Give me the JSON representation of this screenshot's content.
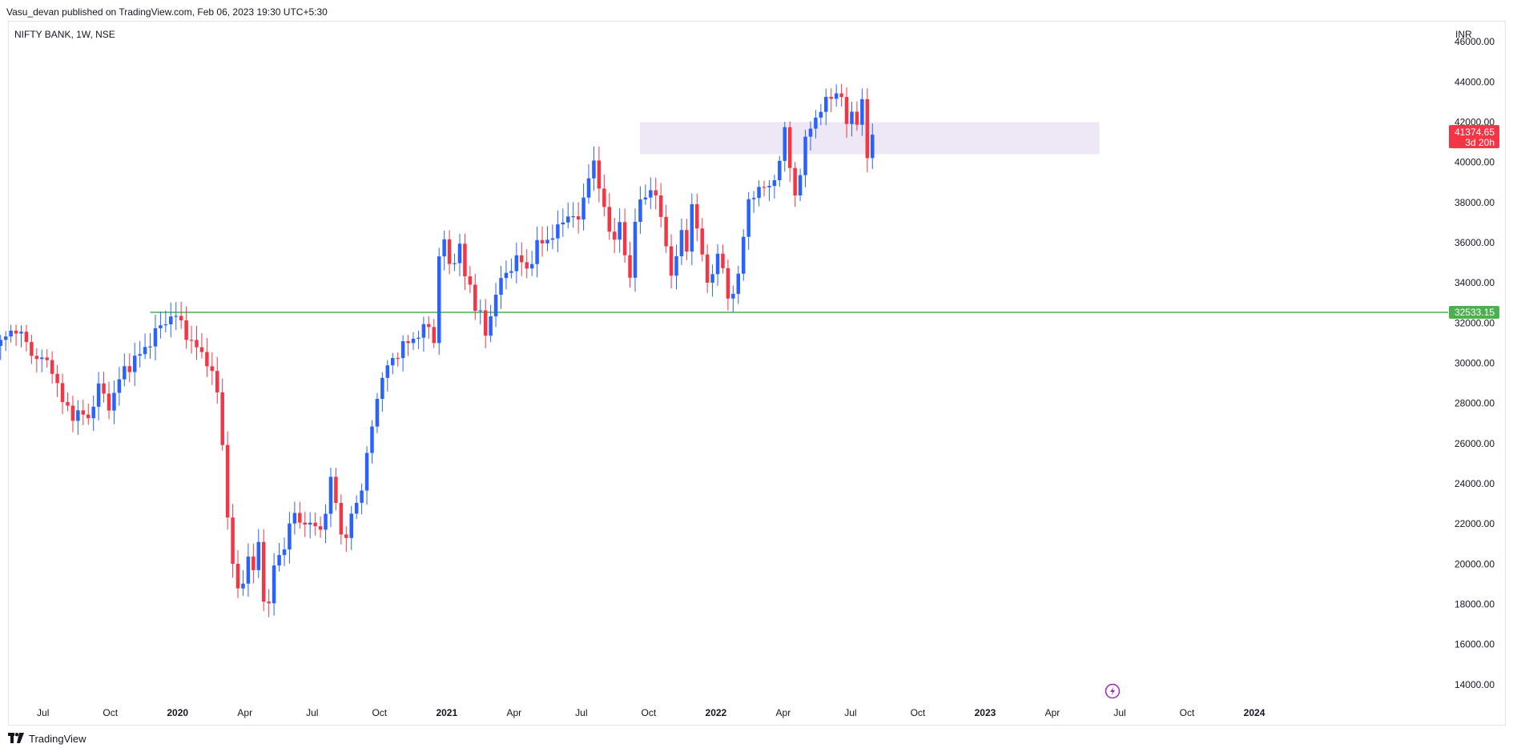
{
  "publish_line": "Vasu_devan published on TradingView.com, Feb 06, 2023 19:30 UTC+5:30",
  "symbol_line": "NIFTY BANK, 1W, NSE",
  "currency": "INR",
  "footer_brand": "TradingView",
  "colors": {
    "up": "#2962ff",
    "down": "#f23645",
    "support_line": "#4caf50",
    "zone_fill": "#ede7f6",
    "price_badge": "#f23645",
    "support_badge": "#4caf50"
  },
  "icons": {
    "footer": "tradingview-logo-icon",
    "event": "lightning-event-icon"
  },
  "chart_data": {
    "type": "candlestick",
    "title": "NIFTY BANK, 1W, NSE",
    "ylabel": "INR",
    "ylim": [
      13000,
      47000
    ],
    "y_ticks": [
      "14000.00",
      "16000.00",
      "18000.00",
      "20000.00",
      "22000.00",
      "24000.00",
      "26000.00",
      "28000.00",
      "30000.00",
      "32000.00",
      "34000.00",
      "36000.00",
      "38000.00",
      "40000.00",
      "42000.00",
      "44000.00",
      "46000.00"
    ],
    "x_labels": [
      {
        "label": "Jul",
        "t": 2019.5,
        "bold": false
      },
      {
        "label": "Oct",
        "t": 2019.75,
        "bold": false
      },
      {
        "label": "2020",
        "t": 2020.0,
        "bold": true
      },
      {
        "label": "Apr",
        "t": 2020.25,
        "bold": false
      },
      {
        "label": "Jul",
        "t": 2020.5,
        "bold": false
      },
      {
        "label": "Oct",
        "t": 2020.75,
        "bold": false
      },
      {
        "label": "2021",
        "t": 2021.0,
        "bold": true
      },
      {
        "label": "Apr",
        "t": 2021.25,
        "bold": false
      },
      {
        "label": "Jul",
        "t": 2021.5,
        "bold": false
      },
      {
        "label": "Oct",
        "t": 2021.75,
        "bold": false
      },
      {
        "label": "2022",
        "t": 2022.0,
        "bold": true
      },
      {
        "label": "Apr",
        "t": 2022.25,
        "bold": false
      },
      {
        "label": "Jul",
        "t": 2022.5,
        "bold": false
      },
      {
        "label": "Oct",
        "t": 2022.75,
        "bold": false
      },
      {
        "label": "2023",
        "t": 2023.0,
        "bold": true
      },
      {
        "label": "Apr",
        "t": 2023.25,
        "bold": false
      },
      {
        "label": "Jul",
        "t": 2023.5,
        "bold": false
      },
      {
        "label": "Oct",
        "t": 2023.75,
        "bold": false
      },
      {
        "label": "2024",
        "t": 2024.0,
        "bold": true
      }
    ],
    "x_range": [
      2019.37,
      2024.72
    ],
    "last_price": {
      "label": "41374.65",
      "countdown": "3d 20h",
      "value": 41374.65
    },
    "support_level": {
      "label": "32533.15",
      "value": 32533.15,
      "start": "2019-11-25"
    },
    "resistance_zone": {
      "from": 40400,
      "to": 42000,
      "start": "2021-09-20",
      "end": "2023-06-05"
    },
    "series": {
      "start_week": "2019-05-06",
      "close_points": [
        [
          0,
          31000
        ],
        [
          3,
          31800
        ],
        [
          6,
          30500
        ],
        [
          10,
          29800
        ],
        [
          12,
          28000
        ],
        [
          14,
          27500
        ],
        [
          17,
          27300
        ],
        [
          19,
          28800
        ],
        [
          21,
          27900
        ],
        [
          24,
          29700
        ],
        [
          27,
          30400
        ],
        [
          30,
          31500
        ],
        [
          33,
          32400
        ],
        [
          35,
          32000
        ],
        [
          37,
          31000
        ],
        [
          40,
          30200
        ],
        [
          42,
          28500
        ],
        [
          43,
          26000
        ],
        [
          44,
          22500
        ],
        [
          45,
          19800
        ],
        [
          46,
          18700
        ],
        [
          47,
          19300
        ],
        [
          48,
          20300
        ],
        [
          49,
          19600
        ],
        [
          50,
          21000
        ],
        [
          51,
          18500
        ],
        [
          52,
          17800
        ],
        [
          53,
          19900
        ],
        [
          55,
          21000
        ],
        [
          57,
          22500
        ],
        [
          59,
          22000
        ],
        [
          61,
          21800
        ],
        [
          63,
          22300
        ],
        [
          64,
          24300
        ],
        [
          65,
          23000
        ],
        [
          66,
          21800
        ],
        [
          67,
          21000
        ],
        [
          68,
          22500
        ],
        [
          70,
          23800
        ],
        [
          72,
          26800
        ],
        [
          73,
          28500
        ],
        [
          75,
          29800
        ],
        [
          77,
          30600
        ],
        [
          79,
          31000
        ],
        [
          81,
          31500
        ],
        [
          83,
          31800
        ],
        [
          84,
          31200
        ],
        [
          85,
          35300
        ],
        [
          86,
          36000
        ],
        [
          87,
          34900
        ],
        [
          89,
          35700
        ],
        [
          90,
          34300
        ],
        [
          91,
          33900
        ],
        [
          92,
          32900
        ],
        [
          93,
          32300
        ],
        [
          94,
          31400
        ],
        [
          96,
          33500
        ],
        [
          98,
          34500
        ],
        [
          100,
          35200
        ],
        [
          102,
          34700
        ],
        [
          104,
          35800
        ],
        [
          106,
          36200
        ],
        [
          108,
          36600
        ],
        [
          110,
          37500
        ],
        [
          112,
          37000
        ],
        [
          114,
          39500
        ],
        [
          115,
          39800
        ],
        [
          116,
          38700
        ],
        [
          117,
          37800
        ],
        [
          119,
          35800
        ],
        [
          120,
          37100
        ],
        [
          121,
          35500
        ],
        [
          122,
          34300
        ],
        [
          123,
          36800
        ],
        [
          124,
          38200
        ],
        [
          125,
          38500
        ],
        [
          127,
          38300
        ],
        [
          128,
          37300
        ],
        [
          129,
          36100
        ],
        [
          130,
          34000
        ],
        [
          131,
          35400
        ],
        [
          132,
          36700
        ],
        [
          133,
          35700
        ],
        [
          134,
          37600
        ],
        [
          135,
          36800
        ],
        [
          136,
          35600
        ],
        [
          137,
          33900
        ],
        [
          138,
          34300
        ],
        [
          139,
          35500
        ],
        [
          140,
          35000
        ],
        [
          141,
          32900
        ],
        [
          142,
          33500
        ],
        [
          143,
          34500
        ],
        [
          144,
          36500
        ],
        [
          145,
          37800
        ],
        [
          147,
          38900
        ],
        [
          149,
          38600
        ],
        [
          150,
          39200
        ],
        [
          151,
          40300
        ],
        [
          152,
          41500
        ],
        [
          153,
          39700
        ],
        [
          154,
          38400
        ],
        [
          155,
          39600
        ],
        [
          156,
          40900
        ],
        [
          157,
          41800
        ],
        [
          158,
          42300
        ],
        [
          159,
          42600
        ],
        [
          161,
          43300
        ],
        [
          162,
          43600
        ],
        [
          163,
          43100
        ],
        [
          164,
          41800
        ],
        [
          165,
          42600
        ],
        [
          166,
          42100
        ],
        [
          167,
          42800
        ],
        [
          168,
          40300
        ],
        [
          169,
          41500
        ]
      ]
    }
  }
}
